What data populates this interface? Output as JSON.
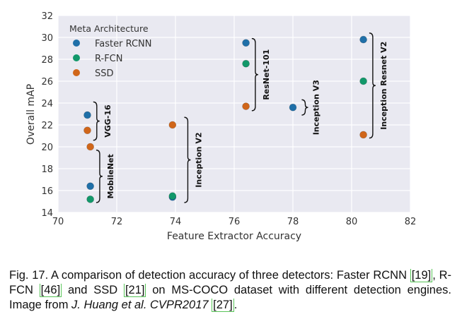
{
  "chart_data": {
    "type": "scatter",
    "title": "",
    "xlabel": "Feature Extractor Accuracy",
    "ylabel": "Overall mAP",
    "xlim": [
      70,
      82
    ],
    "ylim": [
      14,
      32
    ],
    "xticks": [
      70,
      72,
      74,
      76,
      78,
      80,
      82
    ],
    "yticks": [
      14,
      16,
      18,
      20,
      22,
      24,
      26,
      28,
      30,
      32
    ],
    "grid": true,
    "legend": {
      "title": "Meta Architecture",
      "placement": "top-left",
      "entries": [
        "Faster RCNN",
        "R-FCN",
        "SSD"
      ]
    },
    "series": [
      {
        "name": "Faster RCNN",
        "color": "#1f6fa8",
        "points": [
          {
            "x": 71.0,
            "y": 22.9,
            "extractor": "VGG-16"
          },
          {
            "x": 71.1,
            "y": 16.4,
            "extractor": "MobileNet"
          },
          {
            "x": 73.9,
            "y": 15.4,
            "extractor": "Inception V2"
          },
          {
            "x": 76.4,
            "y": 29.5,
            "extractor": "ResNet-101"
          },
          {
            "x": 78.0,
            "y": 23.6,
            "extractor": "Inception V3"
          },
          {
            "x": 80.4,
            "y": 29.8,
            "extractor": "Inception Resnet V2"
          }
        ]
      },
      {
        "name": "R-FCN",
        "color": "#12986a",
        "points": [
          {
            "x": 71.1,
            "y": 15.2,
            "extractor": "MobileNet"
          },
          {
            "x": 73.9,
            "y": 15.5,
            "extractor": "Inception V2"
          },
          {
            "x": 76.4,
            "y": 27.6,
            "extractor": "ResNet-101"
          },
          {
            "x": 80.4,
            "y": 26.0,
            "extractor": "Inception Resnet V2"
          }
        ]
      },
      {
        "name": "SSD",
        "color": "#d0661a",
        "points": [
          {
            "x": 71.0,
            "y": 21.5,
            "extractor": "VGG-16"
          },
          {
            "x": 71.1,
            "y": 20.0,
            "extractor": "MobileNet"
          },
          {
            "x": 73.9,
            "y": 22.0,
            "extractor": "Inception V2"
          },
          {
            "x": 76.4,
            "y": 23.7,
            "extractor": "ResNet-101"
          },
          {
            "x": 80.4,
            "y": 21.1,
            "extractor": "Inception Resnet V2"
          }
        ]
      }
    ],
    "annotations": [
      {
        "label": "VGG-16",
        "x": 71.2,
        "y_range": [
          20.6,
          24.1
        ]
      },
      {
        "label": "MobileNet",
        "x": 71.3,
        "y_range": [
          14.9,
          19.7
        ]
      },
      {
        "label": "Inception V2",
        "x": 74.3,
        "y_range": [
          14.9,
          22.7
        ]
      },
      {
        "label": "ResNet-101",
        "x": 76.6,
        "y_range": [
          23.3,
          29.9
        ]
      },
      {
        "label": "Inception V3",
        "x": 78.3,
        "y_range": [
          22.9,
          24.3
        ]
      },
      {
        "label": "Inception Resnet V2",
        "x": 80.6,
        "y_range": [
          20.8,
          30.4
        ]
      }
    ]
  },
  "caption": {
    "prefix": "Fig. 17. A comparison of detection accuracy of three detectors: Faster RCNN ",
    "ref1": "[19]",
    "mid1": ", R-FCN ",
    "ref2": "[46]",
    "mid2": " and SSD ",
    "ref3": "[21]",
    "mid3": " on MS-COCO dataset with different detection engines. Image from ",
    "italic": "J. Huang et al. CVPR2017",
    "mid4": " ",
    "ref4": "[27]",
    "suffix": "."
  }
}
